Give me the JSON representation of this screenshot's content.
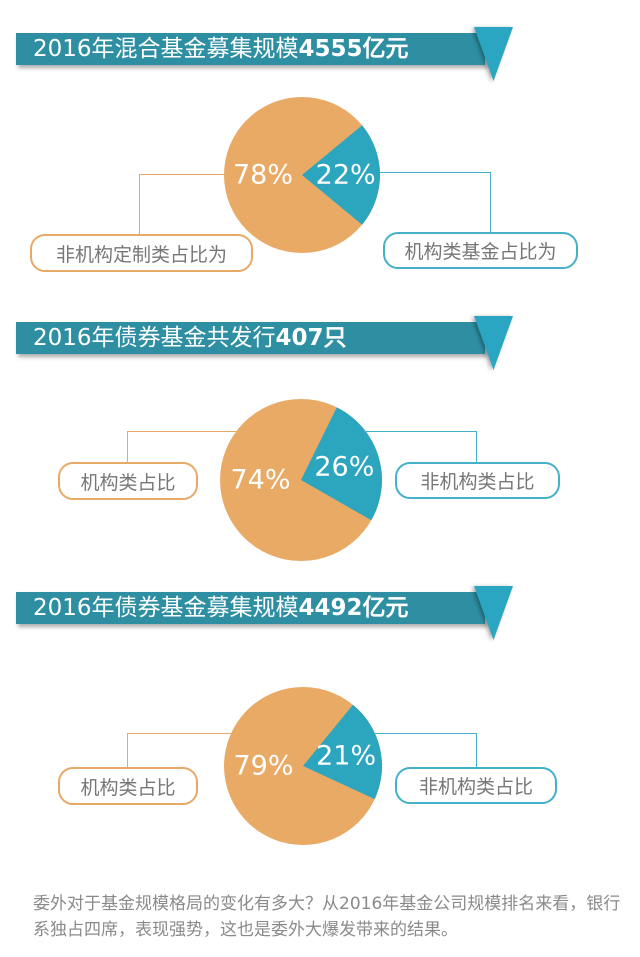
{
  "colors": {
    "banner": "#2e8fa3",
    "ribbon": "#2ba6c2",
    "pie_orange": "#e9aa66",
    "pie_teal": "#2ca6bf",
    "label_border_orange": "#e9a966",
    "label_border_teal": "#45b0c9",
    "label_text": "#777777",
    "footer_text": "#8a8a8a"
  },
  "sections": [
    {
      "title_text": "2016年混合基金募集规模",
      "title_strong": "4555亿元",
      "major_pct": "78%",
      "minor_pct": "22%",
      "left_label": "非机构定制类占比为",
      "right_label": "机构类基金占比为"
    },
    {
      "title_text": "2016年债券基金共发行",
      "title_strong": "407只",
      "major_pct": "74%",
      "minor_pct": "26%",
      "left_label": "机构类占比",
      "right_label": "非机构类占比"
    },
    {
      "title_text": "2016年债券基金募集规模",
      "title_strong": "4492亿元",
      "major_pct": "79%",
      "minor_pct": "21%",
      "left_label": "机构类占比",
      "right_label": "非机构类占比"
    }
  ],
  "chart_data": [
    {
      "type": "pie",
      "title": "2016年混合基金募集规模4555亿元",
      "slices": [
        {
          "label": "非机构定制类占比为",
          "value": 78,
          "color": "#e9aa66"
        },
        {
          "label": "机构类基金占比为",
          "value": 22,
          "color": "#2ca6bf"
        }
      ],
      "minor_mid_angle_deg": 0
    },
    {
      "type": "pie",
      "title": "2016年债券基金共发行407只",
      "slices": [
        {
          "label": "机构类占比",
          "value": 74,
          "color": "#e9aa66"
        },
        {
          "label": "非机构类占比",
          "value": 26,
          "color": "#2ca6bf"
        }
      ],
      "minor_mid_angle_deg": 17
    },
    {
      "type": "pie",
      "title": "2016年债券基金募集规模4492亿元",
      "slices": [
        {
          "label": "机构类占比",
          "value": 79,
          "color": "#e9aa66"
        },
        {
          "label": "非机构类占比",
          "value": 21,
          "color": "#2ca6bf"
        }
      ],
      "minor_mid_angle_deg": 13
    }
  ],
  "footer": {
    "text": "委外对于基金规模格局的变化有多大？从2016年基金公司规模排名来看，银行系独占四席，表现强势，这也是委外大爆发带来的结果。"
  }
}
